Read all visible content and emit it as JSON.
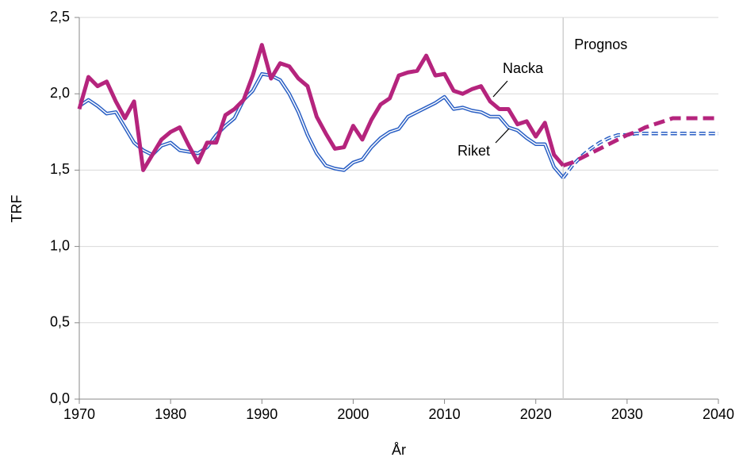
{
  "chart_data": {
    "type": "line",
    "x_label": "År",
    "y_label": "TRF",
    "forecast_x": 2023,
    "forecast_label": "Prognos",
    "x": [
      1970,
      1971,
      1972,
      1973,
      1974,
      1975,
      1976,
      1977,
      1978,
      1979,
      1980,
      1981,
      1982,
      1983,
      1984,
      1985,
      1986,
      1987,
      1988,
      1989,
      1990,
      1991,
      1992,
      1993,
      1994,
      1995,
      1996,
      1997,
      1998,
      1999,
      2000,
      2001,
      2002,
      2003,
      2004,
      2005,
      2006,
      2007,
      2008,
      2009,
      2010,
      2011,
      2012,
      2013,
      2014,
      2015,
      2016,
      2017,
      2018,
      2019,
      2020,
      2021,
      2022,
      2023,
      2024,
      2025,
      2026,
      2027,
      2028,
      2029,
      2030,
      2031,
      2032,
      2033,
      2034,
      2035,
      2036,
      2037,
      2038,
      2039,
      2040
    ],
    "series": [
      {
        "name": "Nacka",
        "color": "#b5247d",
        "values": [
          1.9,
          2.11,
          2.05,
          2.08,
          1.95,
          1.84,
          1.95,
          1.5,
          1.6,
          1.7,
          1.75,
          1.78,
          1.66,
          1.55,
          1.68,
          1.68,
          1.86,
          1.9,
          1.96,
          2.12,
          2.32,
          2.1,
          2.2,
          2.18,
          2.1,
          2.05,
          1.85,
          1.74,
          1.64,
          1.65,
          1.79,
          1.7,
          1.83,
          1.93,
          1.97,
          2.12,
          2.14,
          2.15,
          2.25,
          2.12,
          2.13,
          2.02,
          2.0,
          2.03,
          2.05,
          1.95,
          1.9,
          1.9,
          1.8,
          1.82,
          1.72,
          1.81,
          1.6,
          1.53,
          1.55,
          1.58,
          1.61,
          1.64,
          1.67,
          1.7,
          1.73,
          1.75,
          1.78,
          1.8,
          1.82,
          1.84,
          1.84,
          1.84,
          1.84,
          1.84,
          1.84
        ]
      },
      {
        "name": "Riket",
        "color": "#2a5fc4",
        "values": [
          1.92,
          1.96,
          1.92,
          1.87,
          1.88,
          1.78,
          1.68,
          1.63,
          1.6,
          1.66,
          1.68,
          1.63,
          1.62,
          1.61,
          1.65,
          1.73,
          1.79,
          1.84,
          1.96,
          2.02,
          2.13,
          2.12,
          2.09,
          2.0,
          1.88,
          1.73,
          1.61,
          1.53,
          1.51,
          1.5,
          1.55,
          1.57,
          1.65,
          1.71,
          1.75,
          1.77,
          1.85,
          1.88,
          1.91,
          1.94,
          1.98,
          1.9,
          1.91,
          1.89,
          1.88,
          1.85,
          1.85,
          1.78,
          1.76,
          1.71,
          1.67,
          1.67,
          1.52,
          1.45,
          1.53,
          1.59,
          1.64,
          1.68,
          1.71,
          1.73,
          1.73,
          1.74,
          1.74,
          1.74,
          1.74,
          1.74,
          1.74,
          1.74,
          1.74,
          1.74,
          1.74
        ]
      }
    ],
    "xlim": [
      1970,
      2040
    ],
    "xticks": [
      1970,
      1980,
      1990,
      2000,
      2010,
      2020,
      2030,
      2040
    ],
    "ylim": [
      0,
      2.5
    ],
    "yticks": [
      {
        "value": 0,
        "label": "0,0"
      },
      {
        "value": 0.5,
        "label": "0,5"
      },
      {
        "value": 1,
        "label": "1,0"
      },
      {
        "value": 1.5,
        "label": "1,5"
      },
      {
        "value": 2,
        "label": "2,0"
      },
      {
        "value": 2.5,
        "label": "2,5"
      }
    ],
    "grid": true
  }
}
